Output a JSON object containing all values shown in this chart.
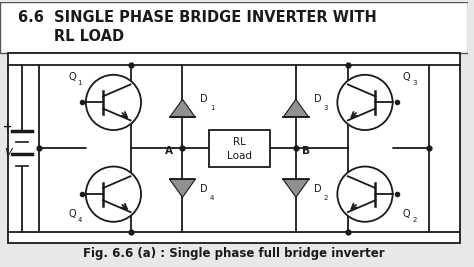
{
  "title_line1": "6.6  SINGLE PHASE BRIDGE INVERTER WITH",
  "title_line2": "       RL LOAD",
  "caption": "Fig. 6.6 (a) : Single phase full bridge inverter",
  "bg_color": "#e8e8e8",
  "circuit_bg": "#ffffff",
  "line_color": "#1a1a1a",
  "diode_color": "#808080",
  "title_fontsize": 10.5,
  "caption_fontsize": 8.5
}
